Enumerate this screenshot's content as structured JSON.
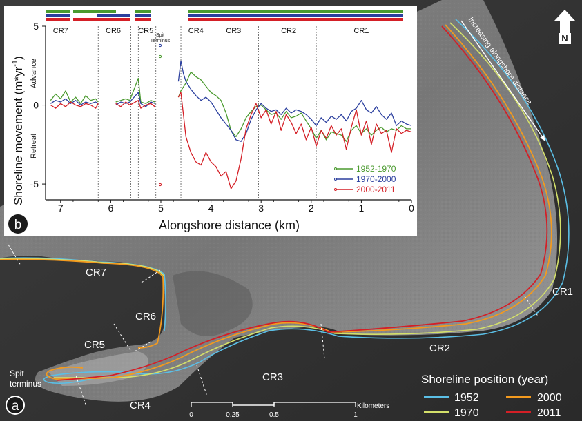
{
  "map": {
    "panel_letter": "a",
    "north_label": "N",
    "along_label": "Increasing alongshore distance",
    "reaches": [
      "CR1",
      "CR2",
      "CR3",
      "CR4",
      "CR5",
      "CR6",
      "CR7"
    ],
    "spit_label_1": "Spit",
    "spit_label_2": "terminus",
    "scale": {
      "title": "Kilometers",
      "ticks": [
        "0",
        "0.25",
        "0.5",
        "1"
      ]
    },
    "legend": {
      "title": "Shoreline position (year)",
      "items": [
        {
          "year": "1952",
          "color": "#5bbfe6"
        },
        {
          "year": "2000",
          "color": "#f39a1e"
        },
        {
          "year": "1970",
          "color": "#d4e06a"
        },
        {
          "year": "2011",
          "color": "#d41f26"
        }
      ]
    }
  },
  "chart_data": {
    "type": "line",
    "panel_letter": "b",
    "xlabel": "Alongshore distance (km)",
    "ylabel": "Shoreline movement (m*yr",
    "ylabel_sup": "-1",
    "ylabel_close": ")",
    "xlim": [
      7.3,
      0
    ],
    "ylim": [
      -6,
      5
    ],
    "x_ticks": [
      "7",
      "6",
      "5",
      "4",
      "3",
      "2",
      "1",
      "0"
    ],
    "y_ticks": [
      "5",
      "0",
      "-5"
    ],
    "advance_label": "Advance",
    "retreat_label": "Retreat",
    "reach_labels": [
      "CR7",
      "CR6",
      "CR5",
      "CR4",
      "CR3",
      "CR2",
      "CR1"
    ],
    "reach_label_x": [
      7.0,
      5.95,
      5.3,
      4.3,
      3.55,
      2.45,
      1.0
    ],
    "reach_bounds": [
      6.25,
      5.6,
      5.45,
      5.1,
      4.6,
      3.05,
      1.9
    ],
    "spit_label_1": "Spit",
    "spit_label_2": "Terminus",
    "series": [
      {
        "name": "1952-1970",
        "color": "#4a9a2e",
        "x": [
          7.2,
          7.1,
          7.0,
          6.9,
          6.8,
          6.7,
          6.6,
          6.5,
          6.4,
          6.3,
          6.25,
          5.9,
          5.8,
          5.7,
          5.62,
          5.45,
          5.4,
          5.3,
          5.2,
          5.12,
          4.65,
          4.6,
          4.5,
          4.4,
          4.3,
          4.2,
          4.1,
          4.0,
          3.9,
          3.8,
          3.7,
          3.6,
          3.5,
          3.4,
          3.3,
          3.2,
          3.1,
          3.0,
          2.9,
          2.8,
          2.7,
          2.6,
          2.5,
          2.4,
          2.3,
          2.2,
          2.1,
          2.0,
          1.9,
          1.8,
          1.7,
          1.6,
          1.5,
          1.4,
          1.3,
          1.2,
          1.1,
          1.0,
          0.9,
          0.8,
          0.7,
          0.6,
          0.5,
          0.4,
          0.3,
          0.2,
          0.1,
          0.0
        ],
        "y": [
          0.3,
          0.7,
          0.4,
          0.9,
          0.2,
          0.5,
          0.1,
          0.6,
          0.3,
          0.4,
          0.2,
          0.2,
          0.3,
          0.4,
          0.3,
          1.7,
          0.2,
          0.1,
          0.3,
          0.2,
          0.5,
          0.9,
          1.4,
          2.1,
          1.8,
          1.6,
          1.2,
          0.8,
          0.6,
          0.3,
          -0.5,
          -1.6,
          -2.0,
          -1.5,
          -0.8,
          -0.4,
          -0.1,
          0.0,
          -0.3,
          -0.6,
          -0.5,
          -0.9,
          -0.4,
          -0.8,
          -0.7,
          -0.5,
          -1.0,
          -1.5,
          -2.1,
          -1.6,
          -2.2,
          -1.7,
          -1.8,
          -1.9,
          -2.3,
          -1.6,
          -1.3,
          -1.8,
          -1.5,
          -1.9,
          -1.6,
          -1.4,
          -1.7,
          -1.5,
          -1.6,
          -1.3,
          -1.5,
          -1.5
        ]
      },
      {
        "name": "1970-2000",
        "color": "#2b3f9e",
        "x": [
          7.2,
          7.1,
          7.0,
          6.9,
          6.8,
          6.7,
          6.6,
          6.5,
          6.4,
          6.3,
          6.25,
          5.9,
          5.8,
          5.7,
          5.62,
          5.45,
          5.4,
          5.3,
          5.2,
          5.12,
          4.65,
          4.6,
          4.55,
          4.5,
          4.4,
          4.3,
          4.2,
          4.1,
          4.0,
          3.9,
          3.8,
          3.7,
          3.6,
          3.5,
          3.4,
          3.3,
          3.2,
          3.1,
          3.0,
          2.9,
          2.8,
          2.7,
          2.6,
          2.5,
          2.4,
          2.3,
          2.2,
          2.1,
          2.0,
          1.9,
          1.8,
          1.7,
          1.6,
          1.5,
          1.4,
          1.3,
          1.2,
          1.1,
          1.0,
          0.9,
          0.8,
          0.7,
          0.6,
          0.5,
          0.4,
          0.3,
          0.2,
          0.1,
          0.0
        ],
        "y": [
          0.1,
          0.3,
          0.2,
          0.4,
          0.1,
          0.3,
          0.0,
          0.2,
          0.1,
          0.2,
          0.1,
          0.0,
          0.2,
          0.1,
          0.2,
          0.8,
          0.1,
          -0.1,
          0.2,
          0.1,
          1.5,
          2.8,
          2.0,
          1.5,
          1.0,
          0.6,
          0.3,
          0.5,
          0.2,
          -0.3,
          -0.8,
          -1.2,
          -1.6,
          -2.2,
          -2.3,
          -1.8,
          -0.9,
          -0.3,
          0.1,
          -0.2,
          -0.4,
          -0.3,
          -0.6,
          -0.2,
          -0.5,
          -0.3,
          -0.4,
          -0.6,
          -0.9,
          -1.3,
          -0.8,
          -1.1,
          -0.7,
          -0.9,
          -0.6,
          -1.0,
          -0.4,
          -0.2,
          0.3,
          -0.3,
          -0.5,
          -0.1,
          -0.6,
          -0.9,
          -0.5,
          -1.3,
          -1.0,
          -1.2,
          -1.3
        ]
      },
      {
        "name": "2000-2011",
        "color": "#d41f26",
        "x": [
          7.2,
          7.1,
          7.0,
          6.9,
          6.8,
          6.7,
          6.6,
          6.5,
          6.4,
          6.3,
          6.25,
          5.9,
          5.8,
          5.7,
          5.62,
          5.45,
          5.4,
          5.3,
          5.2,
          5.12,
          4.65,
          4.6,
          4.55,
          4.5,
          4.4,
          4.3,
          4.2,
          4.1,
          4.0,
          3.9,
          3.8,
          3.7,
          3.6,
          3.5,
          3.4,
          3.3,
          3.2,
          3.1,
          3.0,
          2.9,
          2.8,
          2.7,
          2.6,
          2.5,
          2.4,
          2.3,
          2.2,
          2.1,
          2.0,
          1.9,
          1.8,
          1.7,
          1.6,
          1.5,
          1.4,
          1.3,
          1.2,
          1.1,
          1.0,
          0.9,
          0.8,
          0.7,
          0.6,
          0.5,
          0.4,
          0.3,
          0.2,
          0.1,
          0.0
        ],
        "y": [
          0.0,
          -0.2,
          0.1,
          -0.1,
          0.2,
          0.0,
          -0.1,
          0.1,
          0.0,
          -0.2,
          0.1,
          0.1,
          -0.1,
          0.2,
          0.0,
          0.3,
          -0.2,
          0.0,
          0.1,
          -0.1,
          0.5,
          0.8,
          -0.6,
          -2.0,
          -3.0,
          -3.6,
          -3.8,
          -3.0,
          -3.6,
          -3.9,
          -4.5,
          -4.2,
          -5.3,
          -4.8,
          -3.4,
          -1.5,
          -0.6,
          0.1,
          -0.8,
          -0.3,
          -1.2,
          -0.4,
          -1.6,
          -0.6,
          -1.1,
          -1.8,
          -1.2,
          -2.2,
          -1.4,
          -2.6,
          -1.6,
          -2.1,
          -1.3,
          -1.9,
          -1.5,
          -2.8,
          -1.4,
          -0.3,
          -1.9,
          -1.0,
          -2.5,
          -1.2,
          -1.8,
          -1.6,
          -3.0,
          -1.5,
          -1.8,
          -1.6,
          -1.7
        ]
      }
    ]
  }
}
